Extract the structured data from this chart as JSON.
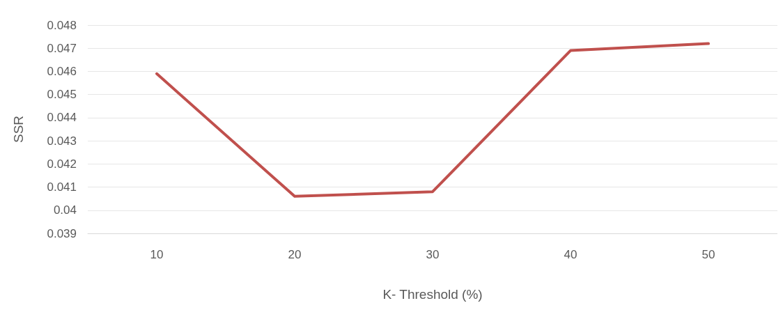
{
  "chart_data": {
    "type": "line",
    "xlabel": "K- Threshold (%)",
    "ylabel": "SSR",
    "categories": [
      "10",
      "20",
      "30",
      "40",
      "50"
    ],
    "series": [
      {
        "color": "#c0504d",
        "values": [
          0.0459,
          0.0406,
          0.0408,
          0.0469,
          0.0472
        ]
      }
    ],
    "ylim": [
      0.039,
      0.048
    ],
    "yticks": [
      0.039,
      0.04,
      0.041,
      0.042,
      0.043,
      0.044,
      0.045,
      0.046,
      0.047,
      0.048
    ],
    "grid": "y",
    "marker": "none",
    "line_style": "solid"
  }
}
